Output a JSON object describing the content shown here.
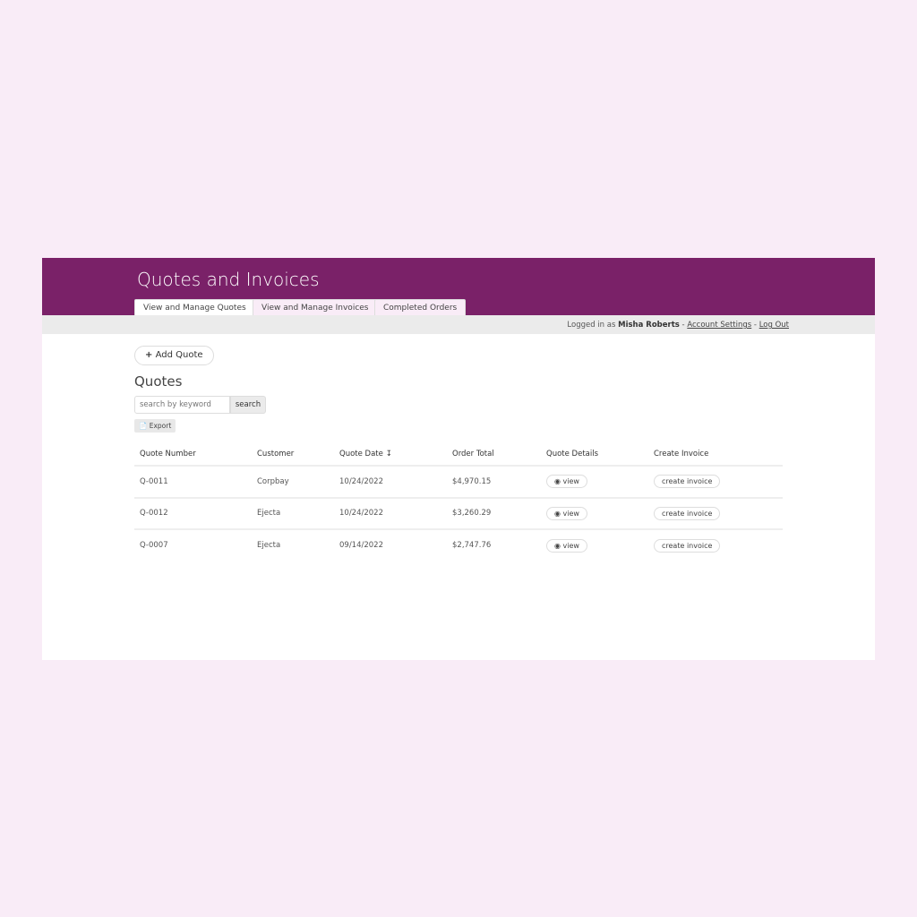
{
  "header": {
    "title": "Quotes and Invoices",
    "accent": "#7a2168"
  },
  "tabs": [
    {
      "label": "View and Manage Quotes",
      "active": true
    },
    {
      "label": "View and Manage Invoices"
    },
    {
      "label": "Completed Orders"
    }
  ],
  "user": {
    "prefix": "Logged in as",
    "name": "Misha Roberts",
    "sep": "-",
    "account": "Account Settings",
    "logout": "Log Out"
  },
  "main": {
    "add_label": "Add Quote",
    "heading": "Quotes",
    "search_placeholder": "search by keyword",
    "search_label": "search",
    "export_label": "Export"
  },
  "table": {
    "columns": [
      "Quote Number",
      "Customer",
      "Quote Date",
      "Order Total",
      "Quote Details",
      "Create Invoice"
    ],
    "rows": [
      {
        "number": "Q-0011",
        "customer": "Corpbay",
        "date": "10/24/2022",
        "total": "$4,970.15",
        "view": "view",
        "invoice": "create invoice"
      },
      {
        "number": "Q-0012",
        "customer": "Ejecta",
        "date": "10/24/2022",
        "total": "$3,260.29",
        "view": "view",
        "invoice": "create invoice"
      },
      {
        "number": "Q-0007",
        "customer": "Ejecta",
        "date": "09/14/2022",
        "total": "$2,747.76",
        "view": "view",
        "invoice": "create invoice"
      }
    ]
  }
}
